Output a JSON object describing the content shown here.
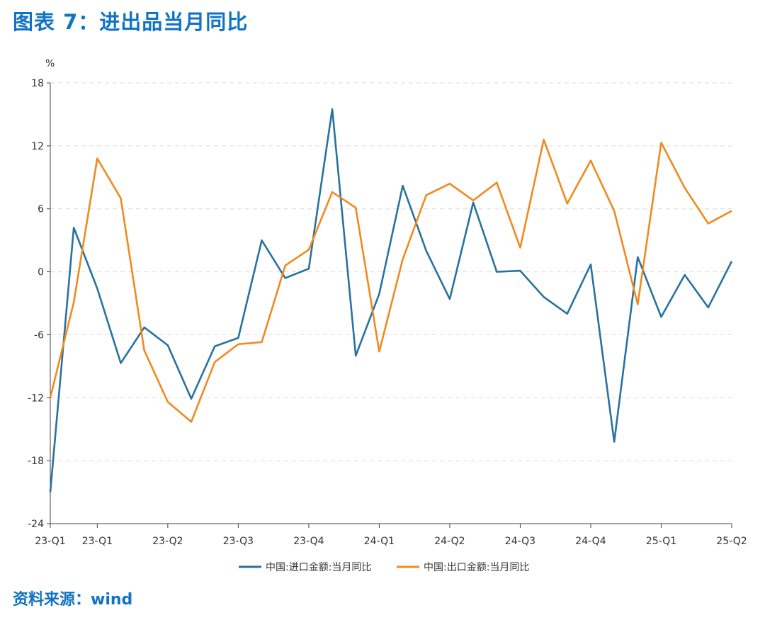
{
  "header": {
    "title": "图表 7：进出品当月同比"
  },
  "footer": {
    "source": "资料来源：wind"
  },
  "chart_data": {
    "type": "line",
    "ylabel": "%",
    "ylim": [
      -24,
      18
    ],
    "yticks": [
      18,
      12,
      6,
      0,
      -6,
      -12,
      -18,
      -24
    ],
    "y_grid": true,
    "legend": "bottom-center",
    "x_tick_labels": [
      "23-Q1",
      "23-Q1",
      "23-Q2",
      "23-Q3",
      "23-Q4",
      "24-Q1",
      "24-Q2",
      "24-Q3",
      "24-Q4",
      "25-Q1",
      "25-Q2"
    ],
    "x_tick_positions": [
      0,
      2,
      5,
      8,
      11,
      14,
      17,
      20,
      23,
      26,
      29
    ],
    "x": [
      0,
      1,
      2,
      3,
      4,
      5,
      6,
      7,
      8,
      9,
      10,
      11,
      12,
      13,
      14,
      15,
      16,
      17,
      18,
      19,
      20,
      21,
      22,
      23,
      24,
      25,
      26,
      27,
      28,
      29
    ],
    "series": [
      {
        "name": "中国:进口金额:当月同比",
        "color": "#2872a0",
        "values": [
          -21.0,
          4.2,
          -1.6,
          -8.7,
          -5.3,
          -7.0,
          -12.1,
          -7.1,
          -6.3,
          3.0,
          -0.6,
          0.3,
          15.5,
          -8.0,
          -2.1,
          8.2,
          2.0,
          -2.6,
          6.6,
          0.0,
          0.1,
          -2.4,
          -4.0,
          0.7,
          -16.2,
          1.4,
          -4.3,
          -0.3,
          -3.4,
          1.0
        ]
      },
      {
        "name": "中国:出口金额:当月同比",
        "color": "#f08a1e",
        "values": [
          -12.0,
          -2.9,
          10.8,
          7.0,
          -7.5,
          -12.4,
          -14.3,
          -8.6,
          -6.9,
          -6.7,
          0.6,
          2.1,
          7.6,
          6.1,
          -7.6,
          1.2,
          7.3,
          8.4,
          6.8,
          8.5,
          2.3,
          12.6,
          6.5,
          10.6,
          5.8,
          -3.1,
          12.3,
          8.0,
          4.6,
          5.8
        ]
      }
    ]
  }
}
